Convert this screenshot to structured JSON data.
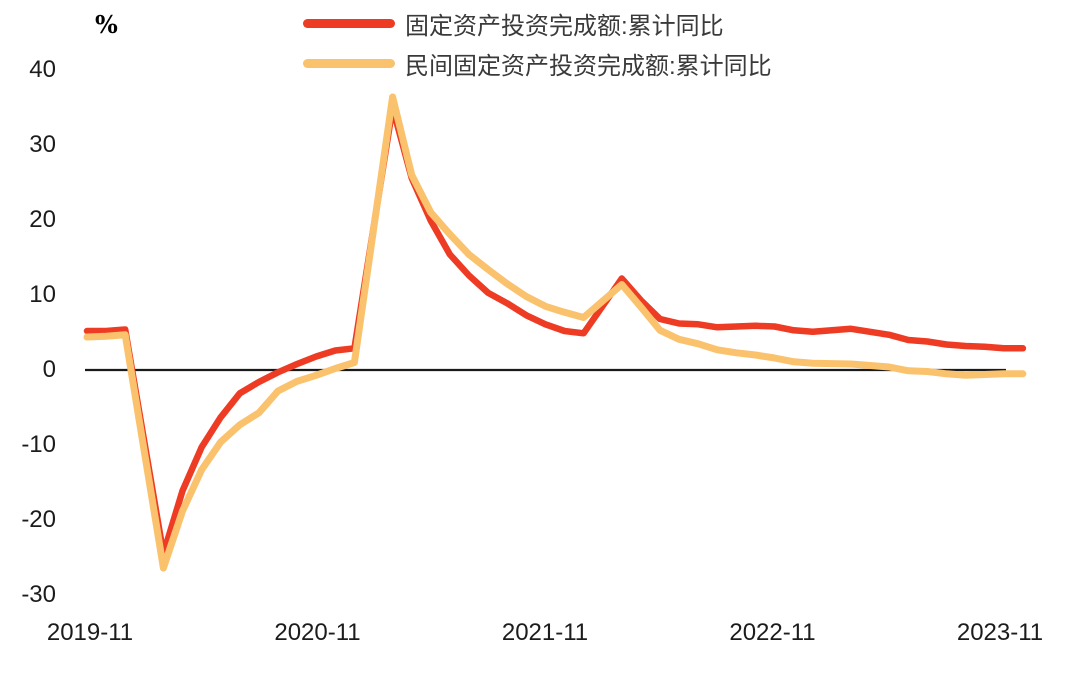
{
  "chart_data": {
    "type": "line",
    "title": "",
    "xlabel": "",
    "ylabel": "%",
    "ylim": [
      -30,
      40
    ],
    "yticks": [
      40,
      30,
      20,
      10,
      0,
      -10,
      -20,
      -30
    ],
    "xticks": [
      "2019-11",
      "2020-11",
      "2021-11",
      "2022-11",
      "2023-11"
    ],
    "grid": false,
    "legend_position": "top",
    "axis_color": "#1a1a1a",
    "tick_text_color": "#1c1c1c",
    "x_note": "monthly cumulative YoY, Jan values not published (Jan-Feb combined)",
    "series": [
      {
        "name": "固定资产投资完成额:累计同比",
        "color": "#EE3B23",
        "stroke_width": 6.5,
        "points": [
          [
            "2019-10",
            5.2
          ],
          [
            "2019-11",
            5.2
          ],
          [
            "2019-12",
            5.4
          ],
          [
            "2020-02",
            -24.5
          ],
          [
            "2020-03",
            -16.1
          ],
          [
            "2020-04",
            -10.3
          ],
          [
            "2020-05",
            -6.3
          ],
          [
            "2020-06",
            -3.1
          ],
          [
            "2020-07",
            -1.6
          ],
          [
            "2020-08",
            -0.3
          ],
          [
            "2020-09",
            0.8
          ],
          [
            "2020-10",
            1.8
          ],
          [
            "2020-11",
            2.6
          ],
          [
            "2020-12",
            2.9
          ],
          [
            "2021-02",
            35.0
          ],
          [
            "2021-03",
            25.6
          ],
          [
            "2021-04",
            19.9
          ],
          [
            "2021-05",
            15.4
          ],
          [
            "2021-06",
            12.6
          ],
          [
            "2021-07",
            10.3
          ],
          [
            "2021-08",
            8.9
          ],
          [
            "2021-09",
            7.3
          ],
          [
            "2021-10",
            6.1
          ],
          [
            "2021-11",
            5.2
          ],
          [
            "2021-12",
            4.9
          ],
          [
            "2022-02",
            12.2
          ],
          [
            "2022-03",
            9.3
          ],
          [
            "2022-04",
            6.8
          ],
          [
            "2022-05",
            6.2
          ],
          [
            "2022-06",
            6.1
          ],
          [
            "2022-07",
            5.7
          ],
          [
            "2022-08",
            5.8
          ],
          [
            "2022-09",
            5.9
          ],
          [
            "2022-10",
            5.8
          ],
          [
            "2022-11",
            5.3
          ],
          [
            "2022-12",
            5.1
          ],
          [
            "2023-02",
            5.5
          ],
          [
            "2023-03",
            5.1
          ],
          [
            "2023-04",
            4.7
          ],
          [
            "2023-05",
            4.0
          ],
          [
            "2023-06",
            3.8
          ],
          [
            "2023-07",
            3.4
          ],
          [
            "2023-08",
            3.2
          ],
          [
            "2023-09",
            3.1
          ],
          [
            "2023-10",
            2.9
          ],
          [
            "2023-11",
            2.9
          ]
        ]
      },
      {
        "name": "民间固定资产投资完成额:累计同比",
        "color": "#FBC26D",
        "stroke_width": 7,
        "points": [
          [
            "2019-10",
            4.4
          ],
          [
            "2019-11",
            4.5
          ],
          [
            "2019-12",
            4.7
          ],
          [
            "2020-02",
            -26.4
          ],
          [
            "2020-03",
            -18.8
          ],
          [
            "2020-04",
            -13.3
          ],
          [
            "2020-05",
            -9.6
          ],
          [
            "2020-06",
            -7.3
          ],
          [
            "2020-07",
            -5.7
          ],
          [
            "2020-08",
            -2.8
          ],
          [
            "2020-09",
            -1.5
          ],
          [
            "2020-10",
            -0.7
          ],
          [
            "2020-11",
            0.2
          ],
          [
            "2020-12",
            1.0
          ],
          [
            "2021-02",
            36.4
          ],
          [
            "2021-03",
            26.0
          ],
          [
            "2021-04",
            21.0
          ],
          [
            "2021-05",
            18.1
          ],
          [
            "2021-06",
            15.4
          ],
          [
            "2021-07",
            13.4
          ],
          [
            "2021-08",
            11.5
          ],
          [
            "2021-09",
            9.8
          ],
          [
            "2021-10",
            8.5
          ],
          [
            "2021-11",
            7.7
          ],
          [
            "2021-12",
            7.0
          ],
          [
            "2022-02",
            11.4
          ],
          [
            "2022-03",
            8.4
          ],
          [
            "2022-04",
            5.3
          ],
          [
            "2022-05",
            4.1
          ],
          [
            "2022-06",
            3.5
          ],
          [
            "2022-07",
            2.7
          ],
          [
            "2022-08",
            2.3
          ],
          [
            "2022-09",
            2.0
          ],
          [
            "2022-10",
            1.6
          ],
          [
            "2022-11",
            1.1
          ],
          [
            "2022-12",
            0.9
          ],
          [
            "2023-02",
            0.8
          ],
          [
            "2023-03",
            0.6
          ],
          [
            "2023-04",
            0.4
          ],
          [
            "2023-05",
            -0.1
          ],
          [
            "2023-06",
            -0.2
          ],
          [
            "2023-07",
            -0.5
          ],
          [
            "2023-08",
            -0.7
          ],
          [
            "2023-09",
            -0.6
          ],
          [
            "2023-10",
            -0.5
          ],
          [
            "2023-11",
            -0.5
          ]
        ]
      }
    ]
  }
}
